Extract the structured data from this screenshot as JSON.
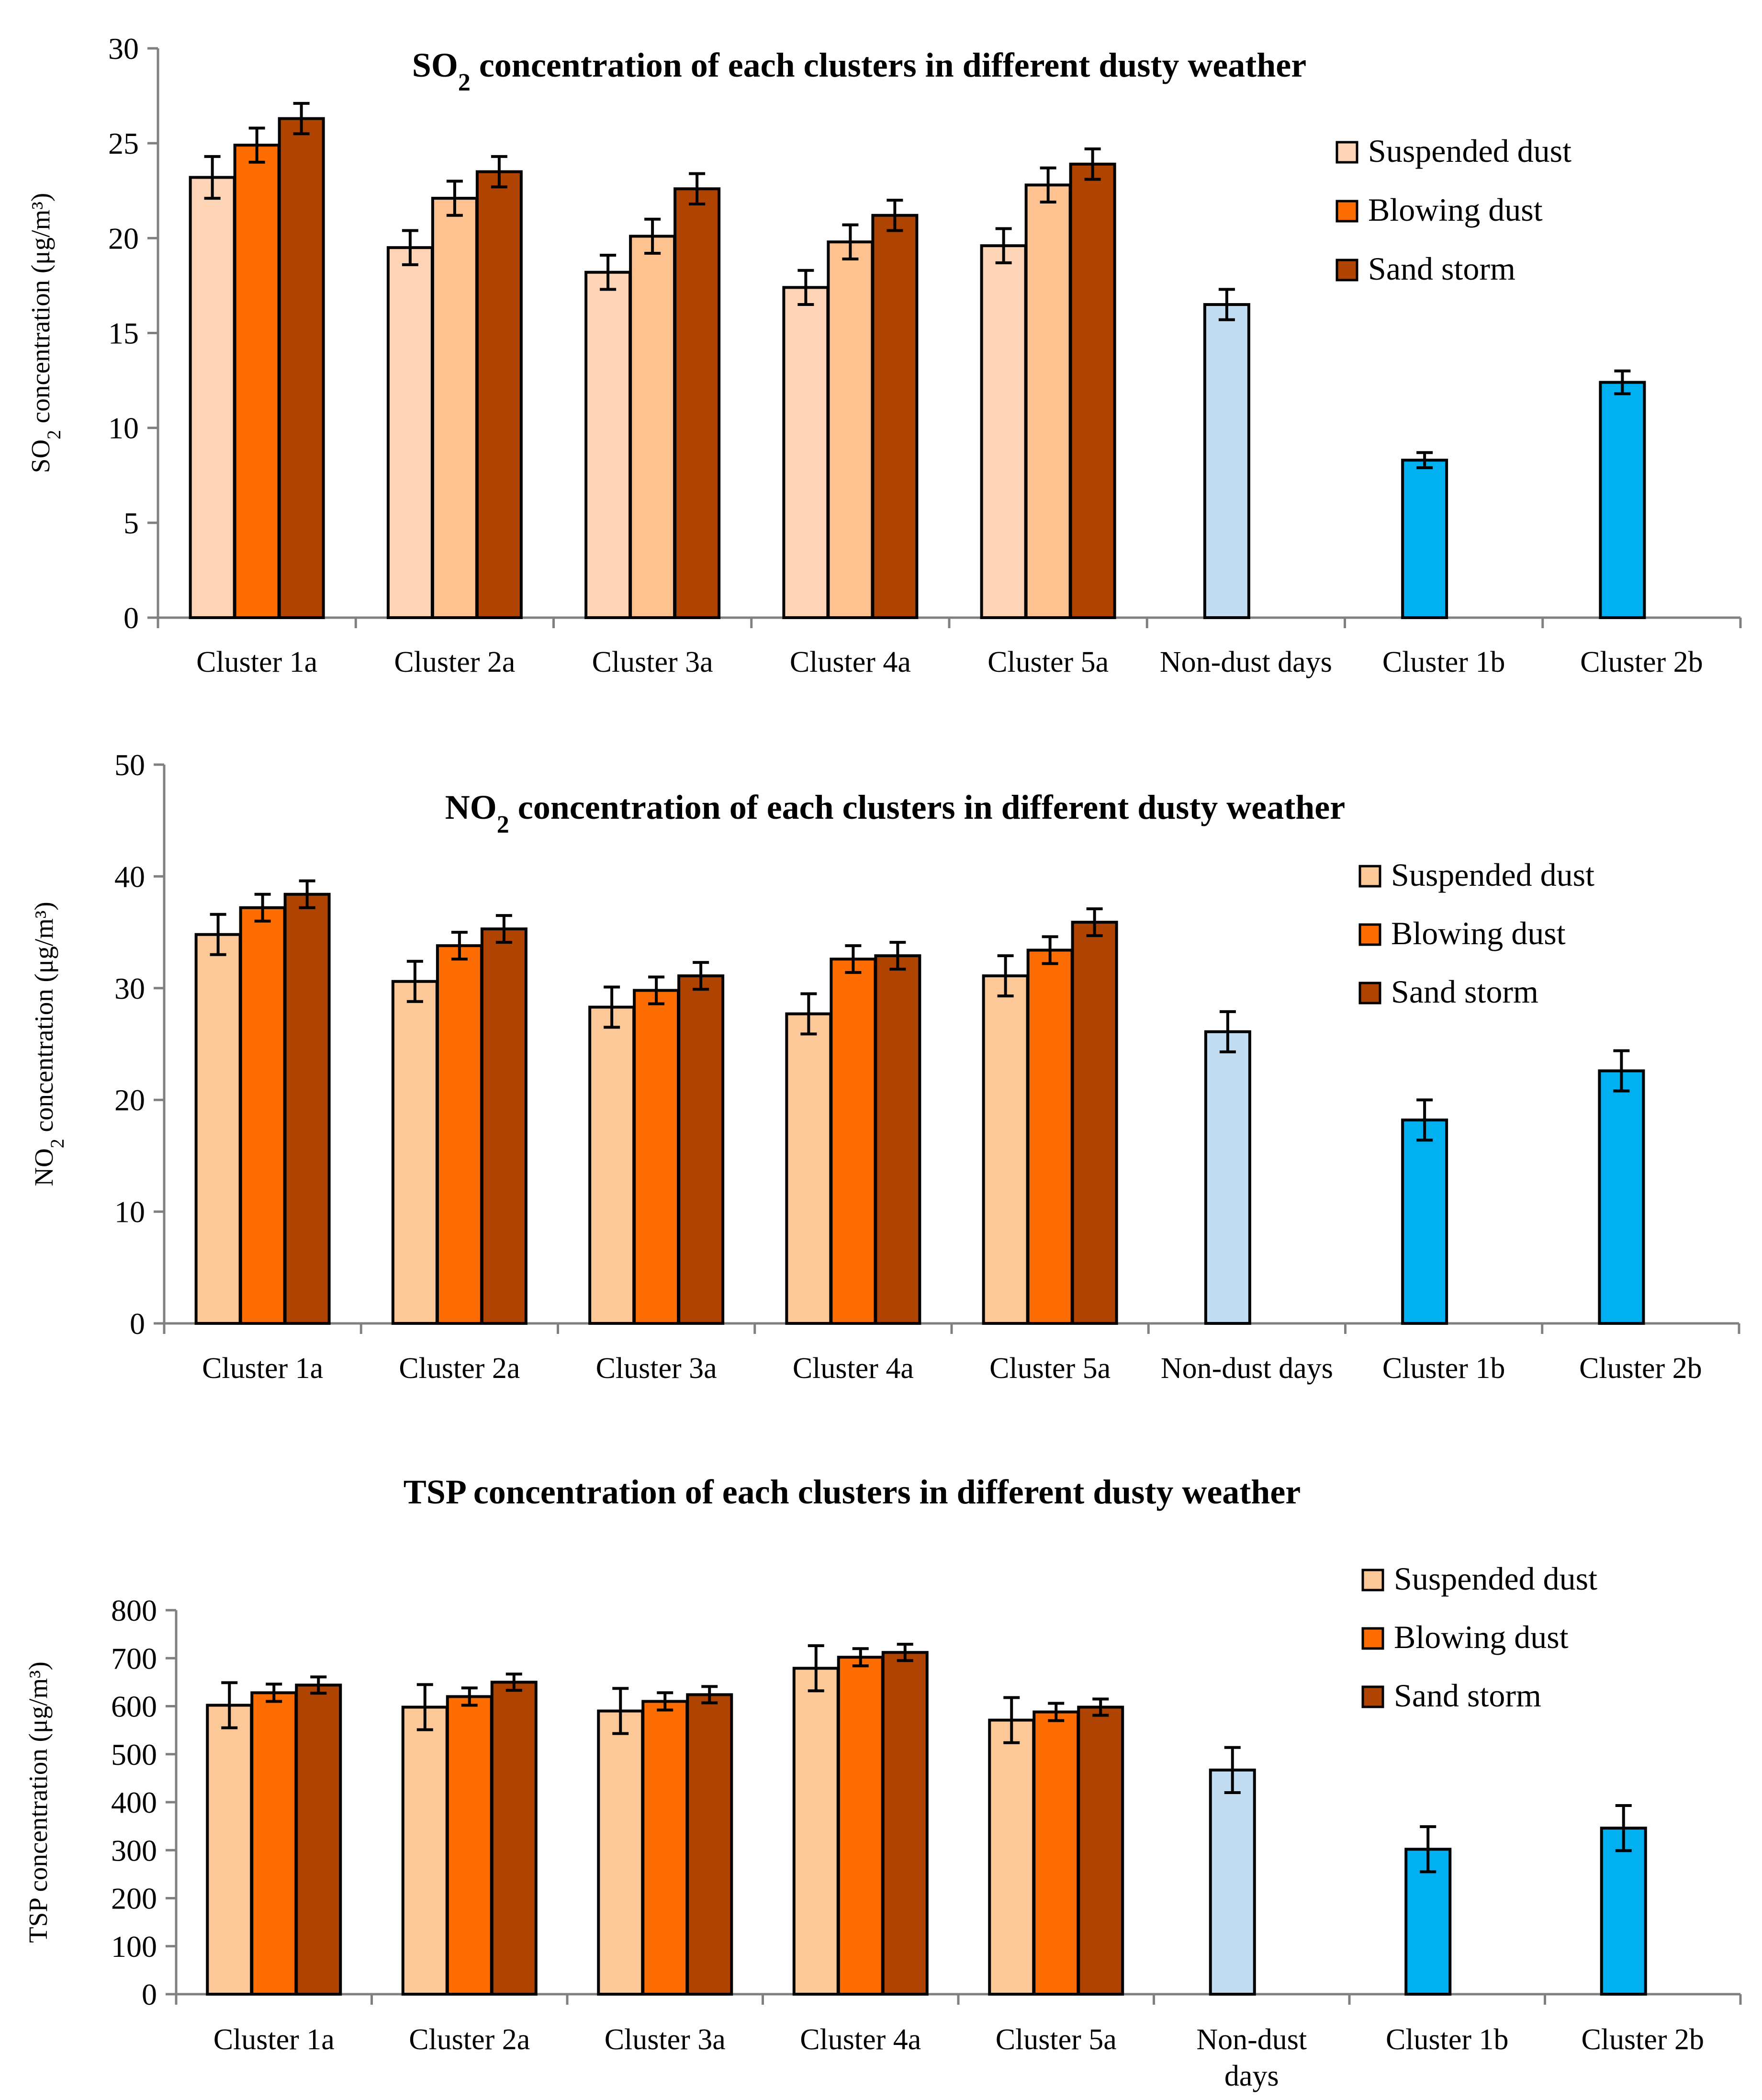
{
  "figure": {
    "colors": {
      "suspended_dust": "#fdc897",
      "suspended_dust_so2": "#fdd5b6",
      "blowing_dust": "#fe6d01",
      "blowing_dust_so2": "#fec190",
      "sand_storm": "#af4302",
      "non_dust": "#c2dcf2",
      "cluster_b": "#00b0f0"
    }
  },
  "chart_data": [
    {
      "type": "bar",
      "id": "so2",
      "title": "SO₂ concentration of each clusters in different dusty weather",
      "title_parts": {
        "pre": "SO",
        "sub": "2",
        "post": " concentration of each clusters in different dusty weather"
      },
      "ylabel_parts": {
        "pre": "SO",
        "sub": "2",
        "post": " concentration (μg/m³)"
      },
      "ylim": [
        0,
        30
      ],
      "yticks": [
        "0",
        "5",
        "10",
        "15",
        "20",
        "25",
        "30"
      ],
      "categories": [
        [
          "Cluster 1a"
        ],
        [
          "Cluster 2a"
        ],
        [
          "Cluster 3a"
        ],
        [
          "Cluster 4a"
        ],
        [
          "Cluster 5a"
        ],
        [
          "Non-dust days"
        ],
        [
          "Cluster 1b"
        ],
        [
          "Cluster 2b"
        ]
      ],
      "legend": [
        "Suspended dust",
        "Blowing dust",
        "Sand storm"
      ],
      "series": [
        {
          "name": "Suspended dust",
          "color": "#fdd5b6",
          "values": [
            23.2,
            19.5,
            18.2,
            17.4,
            19.6,
            null,
            null,
            null
          ],
          "errors": [
            1.1,
            0.9,
            0.9,
            0.9,
            0.9,
            null,
            null,
            null
          ]
        },
        {
          "name": "Blowing dust",
          "color": "#fe6d01",
          "colors": [
            "#fe6d01",
            "#fec190",
            "#fec190",
            "#fec190",
            "#fec190"
          ],
          "values": [
            24.9,
            22.1,
            20.1,
            19.8,
            22.8,
            null,
            null,
            null
          ],
          "errors": [
            0.9,
            0.9,
            0.9,
            0.9,
            0.9,
            null,
            null,
            null
          ]
        },
        {
          "name": "Sand storm",
          "color": "#af4302",
          "values": [
            26.3,
            23.5,
            22.6,
            21.2,
            23.9,
            null,
            null,
            null
          ],
          "errors": [
            0.8,
            0.8,
            0.8,
            0.8,
            0.8,
            null,
            null,
            null
          ]
        }
      ],
      "singles": [
        {
          "category": 5,
          "value": 16.5,
          "error": 0.8,
          "color": "#c2dcf2"
        },
        {
          "category": 6,
          "value": 8.3,
          "error": 0.4,
          "color": "#00b0f0"
        },
        {
          "category": 7,
          "value": 12.4,
          "error": 0.6,
          "color": "#00b0f0"
        }
      ]
    },
    {
      "type": "bar",
      "id": "no2",
      "title": "NO₂ concentration of each clusters in different dusty weather",
      "title_parts": {
        "pre": "NO",
        "sub": "2",
        "post": " concentration of each clusters in different dusty weather"
      },
      "ylabel_parts": {
        "pre": "NO",
        "sub": "2",
        "post": " concentration (μg/m³)"
      },
      "ylim": [
        0,
        50
      ],
      "yticks": [
        "0",
        "10",
        "20",
        "30",
        "40",
        "50"
      ],
      "categories": [
        [
          "Cluster 1a"
        ],
        [
          "Cluster 2a"
        ],
        [
          "Cluster 3a"
        ],
        [
          "Cluster 4a"
        ],
        [
          "Cluster 5a"
        ],
        [
          "Non-dust days"
        ],
        [
          "Cluster 1b"
        ],
        [
          "Cluster 2b"
        ]
      ],
      "legend": [
        "Suspended dust",
        "Blowing dust",
        "Sand storm"
      ],
      "series": [
        {
          "name": "Suspended dust",
          "color": "#fdc897",
          "values": [
            34.8,
            30.6,
            28.3,
            27.7,
            31.1,
            null,
            null,
            null
          ],
          "errors": [
            1.8,
            1.8,
            1.8,
            1.8,
            1.8,
            null,
            null,
            null
          ]
        },
        {
          "name": "Blowing dust",
          "color": "#fe6d01",
          "values": [
            37.2,
            33.8,
            29.8,
            32.6,
            33.4,
            null,
            null,
            null
          ],
          "errors": [
            1.2,
            1.2,
            1.2,
            1.2,
            1.2,
            null,
            null,
            null
          ]
        },
        {
          "name": "Sand storm",
          "color": "#af4302",
          "values": [
            38.4,
            35.3,
            31.1,
            32.9,
            35.9,
            null,
            null,
            null
          ],
          "errors": [
            1.2,
            1.2,
            1.2,
            1.2,
            1.2,
            null,
            null,
            null
          ]
        }
      ],
      "singles": [
        {
          "category": 5,
          "value": 26.1,
          "error": 1.8,
          "color": "#c2dcf2"
        },
        {
          "category": 6,
          "value": 18.2,
          "error": 1.8,
          "color": "#00b0f0"
        },
        {
          "category": 7,
          "value": 22.6,
          "error": 1.8,
          "color": "#00b0f0"
        }
      ]
    },
    {
      "type": "bar",
      "id": "tsp",
      "title": "TSP concentration of each clusters in different dusty weather",
      "title_parts": {
        "pre": "TSP concentration of each clusters in different dusty weather",
        "sub": "",
        "post": ""
      },
      "ylabel_parts": {
        "pre": "TSP concentration (μg/m³)",
        "sub": "",
        "post": ""
      },
      "ylim": [
        0,
        800
      ],
      "yticks": [
        "0",
        "100",
        "200",
        "300",
        "400",
        "500",
        "600",
        "700",
        "800"
      ],
      "categories": [
        [
          "Cluster 1a"
        ],
        [
          "Cluster 2a"
        ],
        [
          "Cluster 3a"
        ],
        [
          "Cluster 4a"
        ],
        [
          "Cluster 5a"
        ],
        [
          "Non-dust",
          "days"
        ],
        [
          "Cluster 1b"
        ],
        [
          "Cluster 2b"
        ]
      ],
      "legend": [
        "Suspended dust",
        "Blowing dust",
        "Sand storm"
      ],
      "series": [
        {
          "name": "Suspended dust",
          "color": "#fdc897",
          "values": [
            602,
            598,
            590,
            679,
            571,
            null,
            null,
            null
          ],
          "errors": [
            47,
            47,
            47,
            47,
            47,
            null,
            null,
            null
          ]
        },
        {
          "name": "Blowing dust",
          "color": "#fe6d01",
          "values": [
            628,
            620,
            610,
            702,
            588,
            null,
            null,
            null
          ],
          "errors": [
            18,
            18,
            18,
            18,
            18,
            null,
            null,
            null
          ]
        },
        {
          "name": "Sand storm",
          "color": "#af4302",
          "values": [
            644,
            650,
            624,
            712,
            598,
            null,
            null,
            null
          ],
          "errors": [
            17,
            17,
            17,
            17,
            17,
            null,
            null,
            null
          ]
        }
      ],
      "singles": [
        {
          "category": 5,
          "value": 467,
          "error": 47,
          "color": "#c2dcf2"
        },
        {
          "category": 6,
          "value": 302,
          "error": 47,
          "color": "#00b0f0"
        },
        {
          "category": 7,
          "value": 346,
          "error": 47,
          "color": "#00b0f0"
        }
      ]
    }
  ]
}
